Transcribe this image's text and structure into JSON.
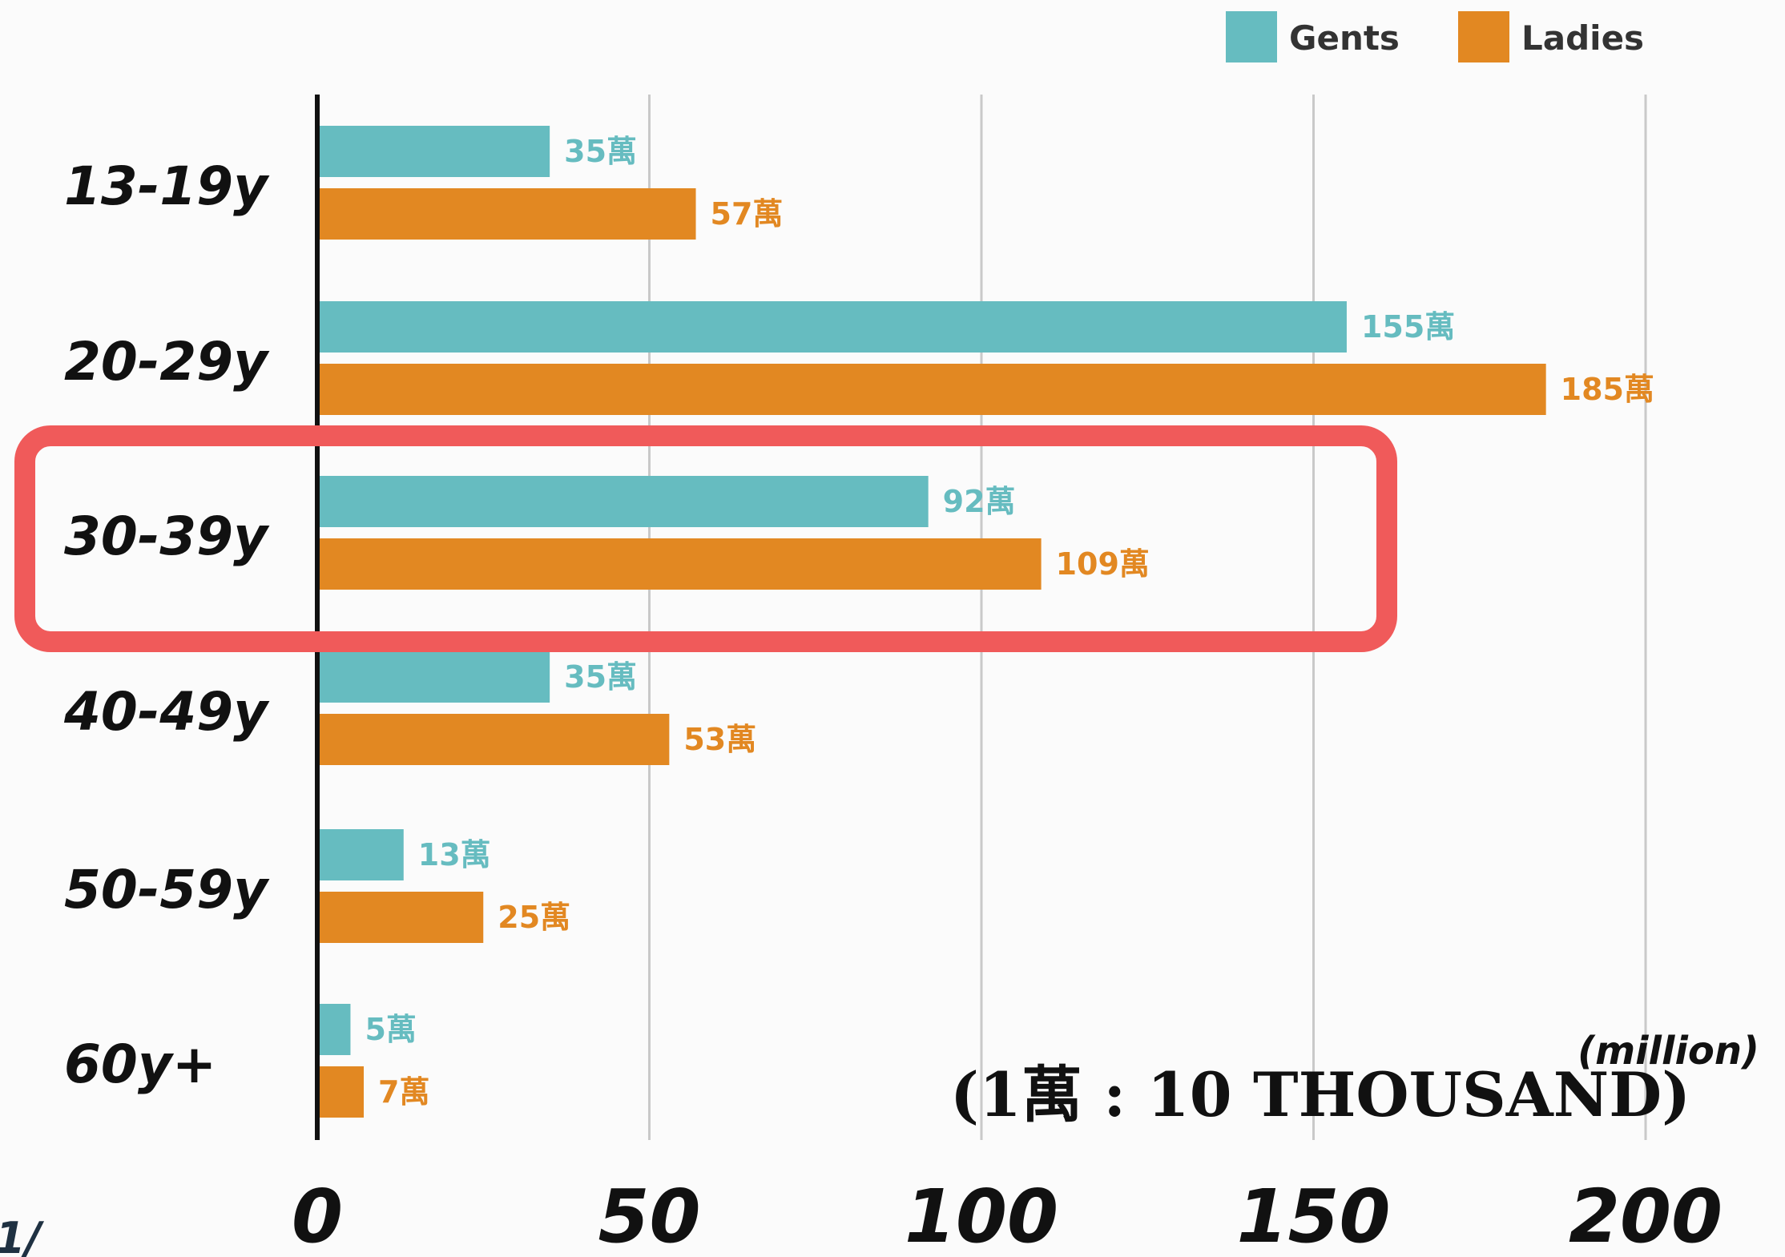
{
  "chart_data": {
    "type": "bar",
    "orientation": "horizontal",
    "categories": [
      "13-19y",
      "20-29y",
      "30-39y",
      "40-49y",
      "50-59y",
      "60y+"
    ],
    "series": [
      {
        "name": "Gents",
        "values": [
          35,
          155,
          92,
          35,
          13,
          5
        ],
        "labels": [
          "35萬",
          "155萬",
          "92萬",
          "35萬",
          "13萬",
          "5萬"
        ],
        "color": "#66bcc0"
      },
      {
        "name": "Ladies",
        "values": [
          57,
          185,
          109,
          53,
          25,
          7
        ],
        "labels": [
          "57萬",
          "185萬",
          "109萬",
          "53萬",
          "25萬",
          "7萬"
        ],
        "color": "#e28822"
      }
    ],
    "x_ticks": [
      "0",
      "50",
      "100",
      "150",
      "200"
    ],
    "xlim": [
      0,
      200
    ],
    "grid": true,
    "legend": "top-right",
    "unit_label": "(million)",
    "note": "(1萬 : 10 THOUSAND)",
    "highlight_category": "30-39y",
    "highlight_color": "#f05a5a",
    "partial_text": "1/"
  }
}
